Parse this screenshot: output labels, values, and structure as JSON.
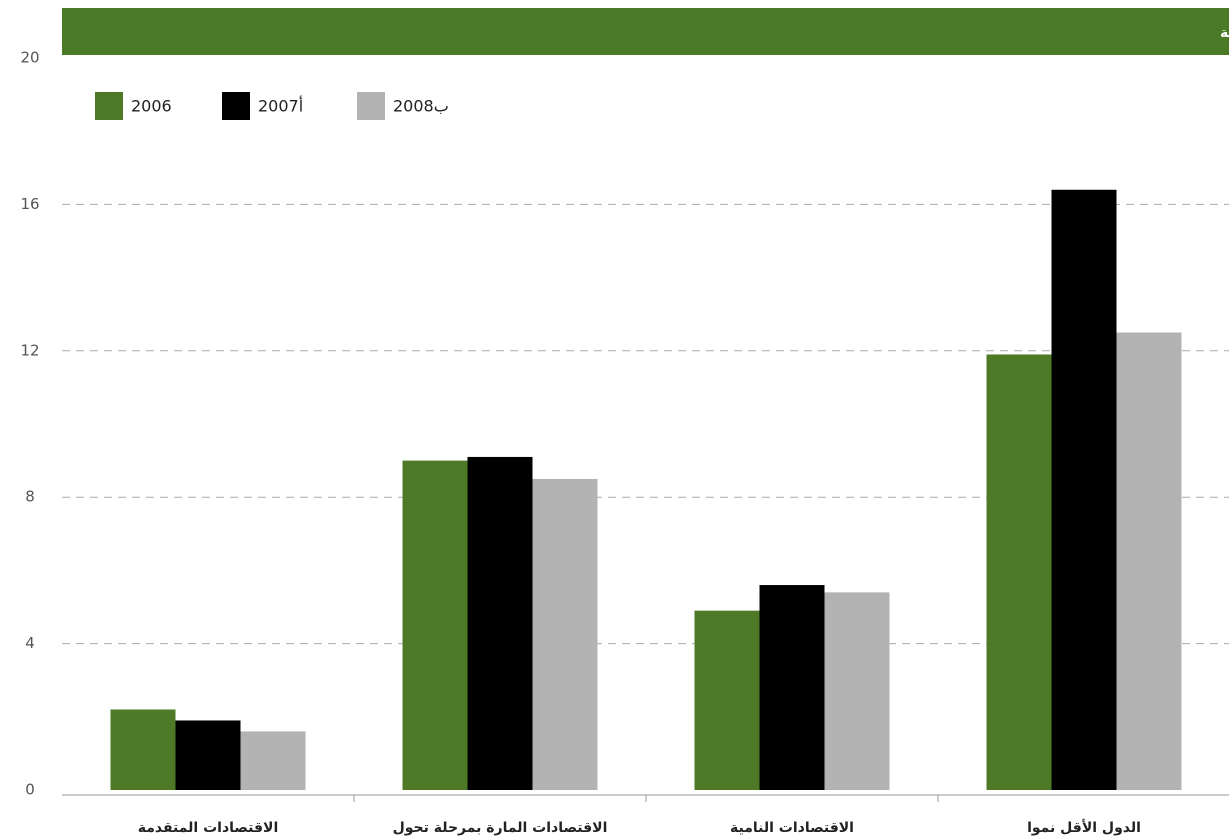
{
  "chart_data": {
    "type": "bar",
    "title": "معدل التغير السنوي كنسبة مئوية",
    "categories": [
      "الاقتصادات المتقدمة",
      "الاقتصادات المارة بمرحلة تحول",
      "الاقتصادات النامية",
      "الدول الأقل نموا"
    ],
    "series": [
      {
        "name": "2006",
        "color": "#4e7a27",
        "values": [
          2.2,
          9.0,
          4.9,
          11.9
        ]
      },
      {
        "name": "2007أ",
        "color": "#000000",
        "values": [
          1.9,
          9.1,
          5.6,
          16.4
        ]
      },
      {
        "name": "2008ب",
        "color": "#b3b3b3",
        "values": [
          1.6,
          8.5,
          5.4,
          12.5
        ]
      }
    ],
    "ylim": [
      0,
      20
    ],
    "yticks": [
      0,
      4,
      8,
      12,
      16,
      20
    ],
    "grid": true,
    "legend": "top-left"
  }
}
